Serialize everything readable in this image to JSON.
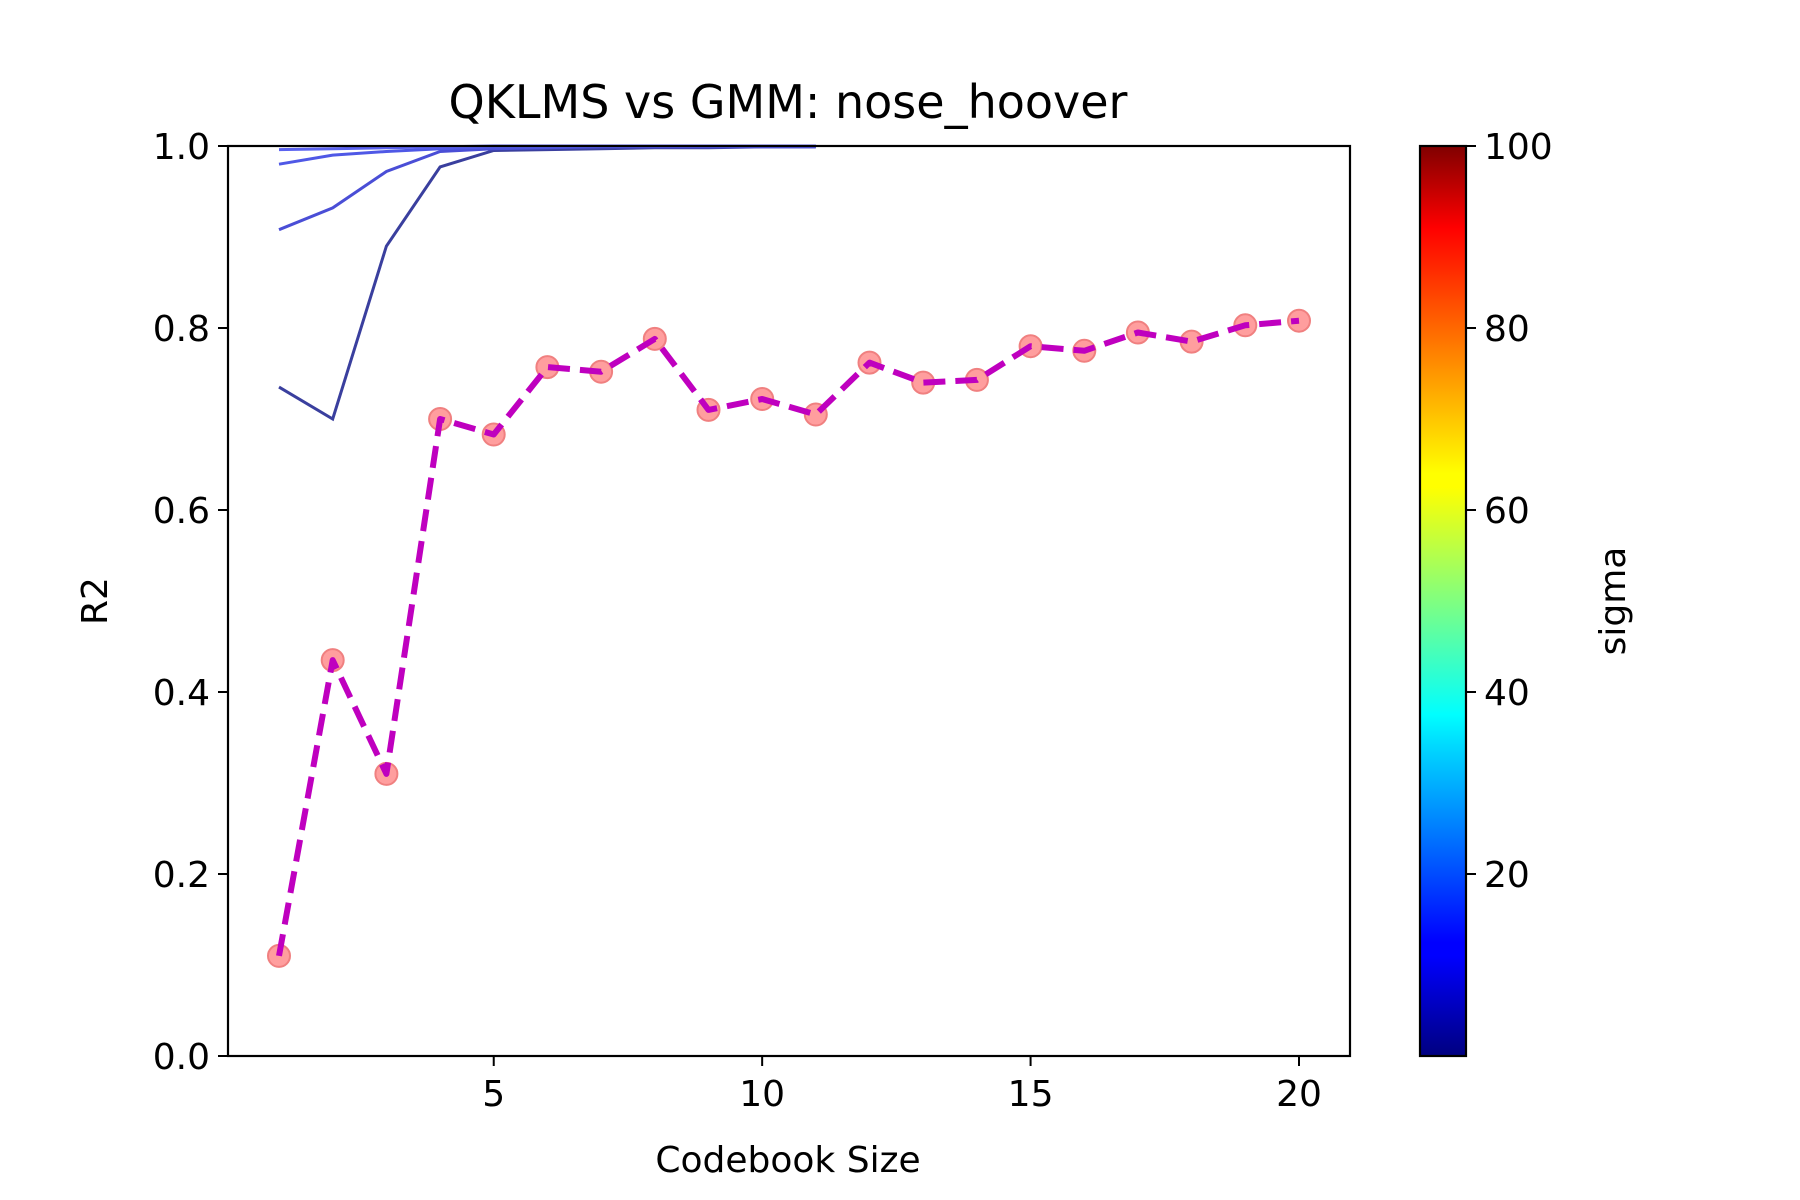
{
  "chart_data": {
    "type": "line",
    "title": "QKLMS vs GMM: nose_hoover",
    "xlabel": "Codebook Size",
    "ylabel": "R2",
    "xlim": [
      0.05,
      20.95
    ],
    "ylim": [
      0.0,
      1.0
    ],
    "xticks": [
      5,
      10,
      15,
      20
    ],
    "yticks": [
      0.0,
      0.2,
      0.4,
      0.6,
      0.8,
      1.0
    ],
    "grid": false,
    "colorbar": {
      "label": "sigma",
      "colormap": "jet",
      "range": [
        0,
        100
      ],
      "ticks": [
        20,
        40,
        60,
        80,
        100
      ]
    },
    "gmm_series": {
      "style": "dashed-with-markers",
      "line_color": "#bf00bf",
      "marker_color": "#ff9e9e",
      "x": [
        1,
        2,
        3,
        4,
        5,
        6,
        7,
        8,
        9,
        10,
        11,
        12,
        13,
        14,
        15,
        16,
        17,
        18,
        19,
        20
      ],
      "values": [
        0.11,
        0.435,
        0.31,
        0.7,
        0.683,
        0.757,
        0.752,
        0.788,
        0.71,
        0.722,
        0.705,
        0.762,
        0.74,
        0.743,
        0.78,
        0.775,
        0.795,
        0.785,
        0.803,
        0.808
      ]
    },
    "qklms_series": [
      {
        "color": "#3a3f9e",
        "x": [
          1,
          2,
          3,
          4,
          5,
          6,
          7,
          8,
          9,
          10,
          11
        ],
        "values": [
          0.735,
          0.7,
          0.89,
          0.977,
          0.995,
          0.996,
          0.997,
          0.998,
          0.998,
          0.999,
          0.999
        ]
      },
      {
        "color": "#4a4ed6",
        "x": [
          1,
          2,
          3,
          4,
          5,
          6,
          7,
          8,
          9,
          10,
          11
        ],
        "values": [
          0.908,
          0.932,
          0.972,
          0.994,
          0.997,
          0.998,
          0.999,
          0.999,
          0.999,
          0.999,
          0.999
        ]
      },
      {
        "color": "#4f58e6",
        "x": [
          1,
          2,
          3,
          4,
          5,
          6,
          7,
          8,
          9,
          10,
          11
        ],
        "values": [
          0.98,
          0.99,
          0.994,
          0.997,
          0.999,
          0.999,
          1.0,
          1.0,
          1.0,
          1.0,
          1.0
        ]
      },
      {
        "color": "#5b63f0",
        "x": [
          1,
          2,
          3,
          4,
          5,
          6,
          7,
          8,
          9,
          10,
          11
        ],
        "values": [
          0.996,
          0.997,
          0.998,
          0.999,
          1.0,
          1.0,
          1.0,
          1.0,
          1.0,
          1.0,
          1.0
        ]
      }
    ]
  }
}
